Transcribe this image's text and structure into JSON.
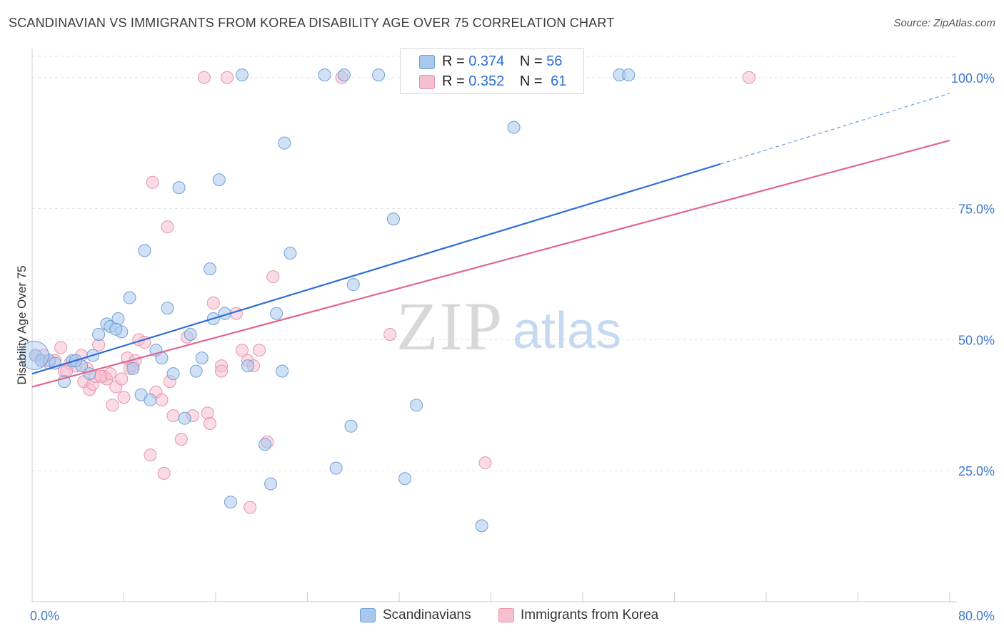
{
  "title": "SCANDINAVIAN VS IMMIGRANTS FROM KOREA DISABILITY AGE OVER 75 CORRELATION CHART",
  "source": "Source: ZipAtlas.com",
  "watermark": {
    "zip": "ZIP",
    "atlas": "atlas"
  },
  "legend": {
    "r_label": "R =",
    "n_label": "N =",
    "rows": [
      {
        "r": "0.374",
        "n": "56"
      },
      {
        "r": "0.352",
        "n": "61"
      }
    ]
  },
  "colors": {
    "blue_fill": "#a9c8ef",
    "blue_stroke": "#6f9fd8",
    "blue_line": "#2d6fd6",
    "pink_fill": "#f6bfd0",
    "pink_stroke": "#e892ad",
    "pink_line": "#e0668f",
    "axis_label": "#3f7ad0",
    "grid": "#e3e3e3"
  },
  "chart_data": {
    "type": "scatter",
    "title": "SCANDINAVIAN VS IMMIGRANTS FROM KOREA DISABILITY AGE OVER 75 CORRELATION CHART",
    "xlabel": "",
    "ylabel": "Disability Age Over 75",
    "xlim": [
      0,
      80
    ],
    "ylim": [
      0,
      105
    ],
    "x_tick_labels": [
      "0.0%",
      "80.0%"
    ],
    "y_ticks": [
      25,
      50,
      75,
      100
    ],
    "y_tick_labels": [
      "25.0%",
      "50.0%",
      "75.0%",
      "100.0%"
    ],
    "grid": true,
    "legend_position": "top-center",
    "series": [
      {
        "name": "Scandinavians",
        "color": "#a9c8ef",
        "trend": {
          "x0": 0,
          "y0": 43.5,
          "x1": 60,
          "y1": 83.5,
          "dashed_to": {
            "x": 80,
            "y": 97
          }
        },
        "points": [
          [
            0.3,
            47
          ],
          [
            0.8,
            46
          ],
          [
            1.5,
            46
          ],
          [
            2.0,
            45.5
          ],
          [
            2.8,
            42
          ],
          [
            3.5,
            46
          ],
          [
            4.3,
            45
          ],
          [
            5.0,
            43.5
          ],
          [
            5.3,
            47
          ],
          [
            5.8,
            51
          ],
          [
            6.5,
            53
          ],
          [
            6.8,
            52.5
          ],
          [
            7.5,
            54
          ],
          [
            7.8,
            51.5
          ],
          [
            8.5,
            58
          ],
          [
            8.8,
            44.5
          ],
          [
            9.5,
            39.5
          ],
          [
            9.8,
            67
          ],
          [
            10.3,
            38.5
          ],
          [
            10.8,
            48
          ],
          [
            11.3,
            46.5
          ],
          [
            11.8,
            56
          ],
          [
            12.3,
            43.5
          ],
          [
            12.8,
            79
          ],
          [
            13.3,
            35
          ],
          [
            13.8,
            51
          ],
          [
            14.3,
            44
          ],
          [
            14.8,
            46.5
          ],
          [
            15.5,
            63.5
          ],
          [
            15.8,
            54
          ],
          [
            16.3,
            80.5
          ],
          [
            16.8,
            55
          ],
          [
            17.3,
            19
          ],
          [
            18.3,
            100.5
          ],
          [
            18.8,
            45
          ],
          [
            20.3,
            30
          ],
          [
            20.8,
            22.5
          ],
          [
            21.3,
            55
          ],
          [
            21.8,
            44
          ],
          [
            22.0,
            87.5
          ],
          [
            22.5,
            66.5
          ],
          [
            25.5,
            100.5
          ],
          [
            26.5,
            25.5
          ],
          [
            27.2,
            100.5
          ],
          [
            27.8,
            33.5
          ],
          [
            28.0,
            60.5
          ],
          [
            30.2,
            100.5
          ],
          [
            31.5,
            73
          ],
          [
            32.5,
            23.5
          ],
          [
            33.5,
            37.5
          ],
          [
            39.2,
            14.5
          ],
          [
            42.0,
            90.5
          ],
          [
            51.2,
            100.5
          ],
          [
            52.0,
            100.5
          ],
          [
            3.8,
            46
          ],
          [
            7.3,
            52
          ]
        ]
      },
      {
        "name": "Immigrants from Korea",
        "color": "#f6bfd0",
        "trend": {
          "x0": 0,
          "y0": 41,
          "x1": 80,
          "y1": 88
        },
        "points": [
          [
            0.3,
            47
          ],
          [
            0.8,
            46
          ],
          [
            1.5,
            45.5
          ],
          [
            2.0,
            46
          ],
          [
            2.5,
            48.5
          ],
          [
            2.8,
            44
          ],
          [
            3.3,
            45.5
          ],
          [
            3.8,
            45
          ],
          [
            4.3,
            47
          ],
          [
            4.5,
            42
          ],
          [
            4.8,
            44.5
          ],
          [
            5.0,
            40.5
          ],
          [
            5.3,
            41.5
          ],
          [
            5.5,
            43
          ],
          [
            5.8,
            49
          ],
          [
            6.3,
            43
          ],
          [
            6.5,
            42.5
          ],
          [
            6.8,
            43.5
          ],
          [
            7.0,
            37.5
          ],
          [
            7.3,
            41
          ],
          [
            7.8,
            42.5
          ],
          [
            8.0,
            39
          ],
          [
            8.3,
            46.5
          ],
          [
            8.5,
            44.5
          ],
          [
            8.8,
            45
          ],
          [
            9.3,
            50
          ],
          [
            9.8,
            49.5
          ],
          [
            10.3,
            28
          ],
          [
            10.5,
            80
          ],
          [
            10.8,
            40
          ],
          [
            11.3,
            38.5
          ],
          [
            11.5,
            24.5
          ],
          [
            11.8,
            71.5
          ],
          [
            12.3,
            35.5
          ],
          [
            13.0,
            31
          ],
          [
            13.5,
            50.5
          ],
          [
            14.0,
            35.5
          ],
          [
            15.0,
            100
          ],
          [
            15.3,
            36
          ],
          [
            15.5,
            34
          ],
          [
            15.8,
            57
          ],
          [
            16.5,
            45
          ],
          [
            16.5,
            44
          ],
          [
            17.0,
            100
          ],
          [
            17.8,
            55
          ],
          [
            18.3,
            48
          ],
          [
            18.8,
            46
          ],
          [
            19.0,
            18
          ],
          [
            19.3,
            45
          ],
          [
            19.8,
            48
          ],
          [
            20.5,
            30.5
          ],
          [
            21.0,
            62
          ],
          [
            27.0,
            100
          ],
          [
            31.2,
            51
          ],
          [
            39.5,
            26.5
          ],
          [
            62.5,
            100
          ],
          [
            1.0,
            47
          ],
          [
            3.0,
            44
          ],
          [
            6.0,
            43
          ],
          [
            9.0,
            46
          ],
          [
            12.0,
            42
          ]
        ]
      }
    ]
  },
  "bottom_legend": [
    "Scandinavians",
    "Immigrants from Korea"
  ]
}
